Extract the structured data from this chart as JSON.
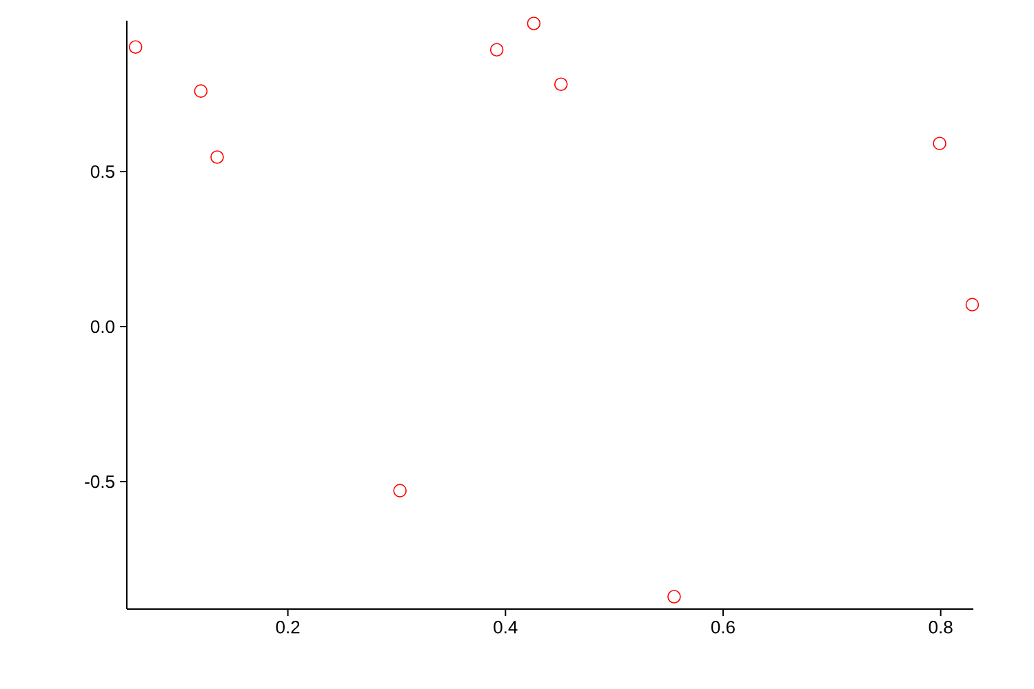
{
  "chart_data": {
    "type": "scatter",
    "x": [
      0.06,
      0.12,
      0.135,
      0.303,
      0.392,
      0.426,
      0.451,
      0.555,
      0.799,
      0.829
    ],
    "values": [
      0.902,
      0.76,
      0.547,
      -0.529,
      0.893,
      0.978,
      0.782,
      -0.871,
      0.591,
      0.071
    ],
    "color": "#ff0000",
    "marker": "circle",
    "xlim": [
      0.052,
      0.83
    ],
    "ylim": [
      -0.911,
      0.987
    ],
    "xticks": [
      {
        "value": 0.2,
        "label": "0.2"
      },
      {
        "value": 0.4,
        "label": "0.4"
      },
      {
        "value": 0.6,
        "label": "0.6"
      },
      {
        "value": 0.8,
        "label": "0.8"
      }
    ],
    "yticks": [
      {
        "value": -0.5,
        "label": "-0.5"
      },
      {
        "value": 0,
        "label": "0.0"
      },
      {
        "value": 0.5,
        "label": "0.5"
      }
    ],
    "grid": false
  }
}
